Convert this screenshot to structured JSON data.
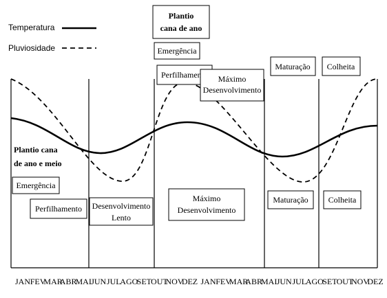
{
  "legend": {
    "temperature": "Temperatura",
    "rainfall": "Pluviosidade"
  },
  "months": [
    "JAN",
    "FEV",
    "MAR",
    "ABR",
    "MAI",
    "JUN",
    "JUL",
    "AGO",
    "SET",
    "OUT",
    "NOV",
    "DEZ",
    "JAN",
    "FEV",
    "MAR",
    "ABR",
    "MAI",
    "JUN",
    "JUL",
    "AGO",
    "SET",
    "OUT",
    "NOV",
    "DEZ"
  ],
  "top_stages": {
    "planting": [
      "Plantio",
      "cana de ano"
    ],
    "emergence": "Emergência",
    "tillering": "Perfilhamento",
    "max_growth": [
      "Máximo",
      "Desenvolvimento"
    ],
    "maturation": "Maturação",
    "harvest": "Colheita"
  },
  "bottom_stages": {
    "planting": [
      "Plantio cana",
      "de ano e meio"
    ],
    "emergence": "Emergência",
    "tillering": "Perfilhamento",
    "slow_growth": [
      "Desenvolvimento",
      "Lento"
    ],
    "max_growth": [
      "Máximo",
      "Desenvolvimento"
    ],
    "maturation": "Maturação",
    "harvest": "Colheita"
  }
}
